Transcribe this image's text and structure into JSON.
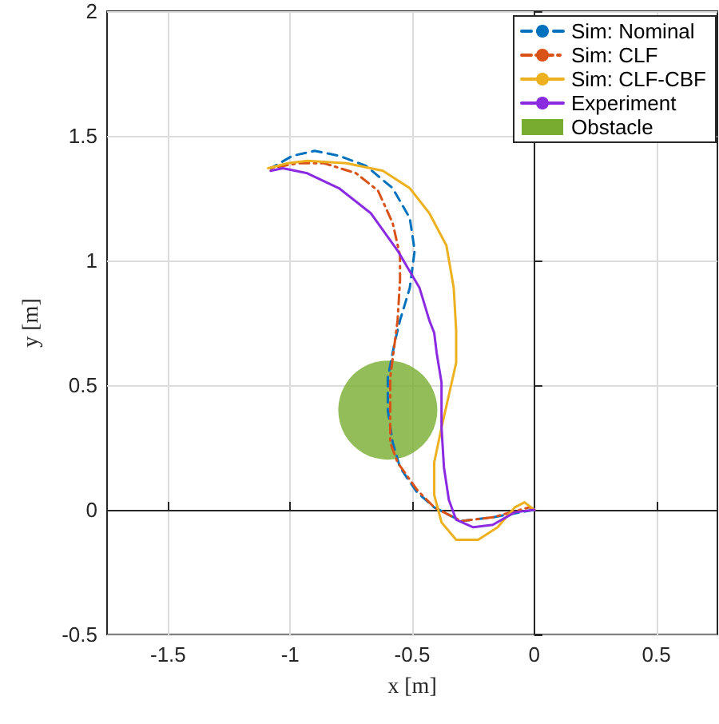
{
  "chart_data": {
    "type": "line",
    "xlabel": "x [m]",
    "ylabel": "y [m]",
    "xlim": [
      -1.75,
      0.75
    ],
    "xticks": [
      -1.5,
      -1,
      -0.5,
      0,
      0.5
    ],
    "ylim": [
      -0.5,
      2
    ],
    "yticks": [
      -0.5,
      0,
      0.5,
      1,
      1.5,
      2
    ],
    "grid": true,
    "legend": "top right",
    "marker": "none",
    "series": [
      {
        "name": "Sim: Nominal",
        "color": "#0072bd",
        "line_style": "dashed",
        "x": [
          0,
          -0.17,
          -0.3,
          -0.41,
          -0.48,
          -0.55,
          -0.58,
          -0.6,
          -0.6,
          -0.57,
          -0.55,
          -0.51,
          -0.49,
          -0.51,
          -0.58,
          -0.69,
          -0.8,
          -0.9,
          -0.99,
          -1.08
        ],
        "values": [
          0,
          -0.03,
          -0.045,
          0.01,
          0.07,
          0.17,
          0.27,
          0.4,
          0.53,
          0.68,
          0.76,
          0.89,
          1.04,
          1.17,
          1.29,
          1.38,
          1.42,
          1.44,
          1.42,
          1.37
        ]
      },
      {
        "name": "Sim: CLF",
        "color": "#d95319",
        "line_style": "dashdot",
        "x": [
          0,
          -0.02,
          -0.17,
          -0.3,
          -0.41,
          -0.48,
          -0.56,
          -0.59,
          -0.59,
          -0.56,
          -0.55,
          -0.55,
          -0.58,
          -0.64,
          -0.73,
          -0.86,
          -0.97,
          -1.08
        ],
        "values": [
          0,
          0.01,
          -0.03,
          -0.045,
          0.01,
          0.08,
          0.19,
          0.27,
          0.53,
          0.76,
          0.92,
          1.02,
          1.15,
          1.28,
          1.35,
          1.39,
          1.39,
          1.37
        ]
      },
      {
        "name": "Sim: CLF-CBF",
        "color": "#edb120",
        "line_style": "solid",
        "x": [
          0,
          -0.04,
          -0.08,
          -0.15,
          -0.23,
          -0.32,
          -0.38,
          -0.41,
          -0.41,
          -0.38,
          -0.35,
          -0.32,
          -0.32,
          -0.33,
          -0.36,
          -0.43,
          -0.51,
          -0.62,
          -0.77,
          -0.93,
          -1.01,
          -1.09
        ],
        "values": [
          0,
          0.03,
          0.01,
          -0.07,
          -0.12,
          -0.12,
          -0.05,
          0.06,
          0.19,
          0.33,
          0.46,
          0.59,
          0.72,
          0.89,
          1.06,
          1.19,
          1.29,
          1.36,
          1.39,
          1.4,
          1.39,
          1.37
        ]
      },
      {
        "name": "Experiment",
        "color": "#8a2be2",
        "line_style": "solid",
        "x": [
          0,
          -0.08,
          -0.17,
          -0.25,
          -0.32,
          -0.35,
          -0.37,
          -0.38,
          -0.38,
          -0.4,
          -0.41,
          -0.43,
          -0.47,
          -0.56,
          -0.67,
          -0.8,
          -0.93,
          -1.03,
          -1.08
        ],
        "values": [
          0,
          -0.01,
          -0.06,
          -0.07,
          -0.04,
          0.04,
          0.17,
          0.33,
          0.51,
          0.63,
          0.71,
          0.76,
          0.89,
          1.04,
          1.19,
          1.29,
          1.35,
          1.37,
          1.36
        ]
      },
      {
        "name": "Obstacle",
        "type": "bubble",
        "color": "#77ac30",
        "marker": "circle",
        "x": [
          -0.6
        ],
        "values": [
          0.4
        ],
        "sizes": [
          1
        ]
      }
    ]
  }
}
